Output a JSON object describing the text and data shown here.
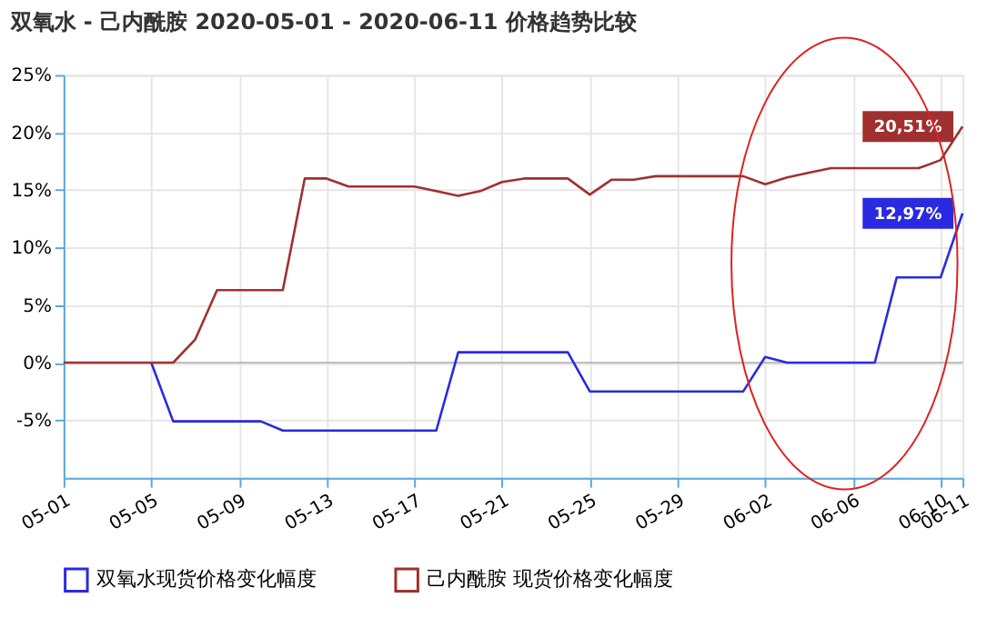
{
  "chart_data": {
    "type": "line",
    "title": "双氧水 - 己内酰胺 2020-05-01 - 2020-06-11 价格趋势比较",
    "x": [
      "2020-05-01",
      "2020-05-02",
      "2020-05-03",
      "2020-05-04",
      "2020-05-05",
      "2020-05-06",
      "2020-05-07",
      "2020-05-08",
      "2020-05-09",
      "2020-05-10",
      "2020-05-11",
      "2020-05-12",
      "2020-05-13",
      "2020-05-14",
      "2020-05-15",
      "2020-05-16",
      "2020-05-17",
      "2020-05-18",
      "2020-05-19",
      "2020-05-20",
      "2020-05-21",
      "2020-05-22",
      "2020-05-23",
      "2020-05-24",
      "2020-05-25",
      "2020-05-26",
      "2020-05-27",
      "2020-05-28",
      "2020-05-29",
      "2020-05-30",
      "2020-05-31",
      "2020-06-01",
      "2020-06-02",
      "2020-06-03",
      "2020-06-04",
      "2020-06-05",
      "2020-06-06",
      "2020-06-07",
      "2020-06-08",
      "2020-06-09",
      "2020-06-10",
      "2020-06-11"
    ],
    "series": [
      {
        "name": "双氧水现货价格变化幅度",
        "color": "#2a2ae0",
        "values": [
          null,
          null,
          null,
          null,
          0,
          -5.1,
          -5.1,
          -5.1,
          -5.1,
          -5.1,
          -5.9,
          -5.9,
          -5.9,
          -5.9,
          -5.9,
          -5.9,
          -5.9,
          -5.9,
          0.9,
          0.9,
          0.9,
          0.9,
          0.9,
          0.9,
          -2.5,
          -2.5,
          -2.5,
          -2.5,
          -2.5,
          -2.5,
          -2.5,
          -2.5,
          0.5,
          0,
          0,
          0,
          0,
          0,
          7.4,
          7.4,
          7.4,
          12.97
        ]
      },
      {
        "name": "己内酰胺 现货价格变化幅度",
        "color": "#a03030",
        "values": [
          0,
          0,
          0,
          0,
          0,
          0,
          2,
          6.3,
          6.3,
          6.3,
          6.3,
          16,
          16,
          15.3,
          15.3,
          15.3,
          15.3,
          14.9,
          14.5,
          14.9,
          15.7,
          16,
          16,
          16,
          14.6,
          15.9,
          15.9,
          16.2,
          16.2,
          16.2,
          16.2,
          16.2,
          15.5,
          16.1,
          16.5,
          16.9,
          16.9,
          16.9,
          16.9,
          16.9,
          17.6,
          20.51
        ]
      }
    ],
    "annotations": [
      {
        "text": "12,97%",
        "x": "2020-06-11",
        "y": 12.97
      },
      {
        "text": "20,51%",
        "x": "2020-06-11",
        "y": 20.51
      }
    ],
    "xlim": [
      "2020-05-01",
      "2020-06-11"
    ],
    "xticks": [
      {
        "value": "2020-05-01",
        "label": "05-01"
      },
      {
        "value": "2020-05-05",
        "label": "05-05"
      },
      {
        "value": "2020-05-09",
        "label": "05-09"
      },
      {
        "value": "2020-05-13",
        "label": "05-13"
      },
      {
        "value": "2020-05-17",
        "label": "05-17"
      },
      {
        "value": "2020-05-21",
        "label": "05-21"
      },
      {
        "value": "2020-05-25",
        "label": "05-25"
      },
      {
        "value": "2020-05-29",
        "label": "05-29"
      },
      {
        "value": "2020-06-02",
        "label": "06-02"
      },
      {
        "value": "2020-06-06",
        "label": "06-06"
      },
      {
        "value": "2020-06-10",
        "label": "06-10"
      },
      {
        "value": "2020-06-11",
        "label": "06-11"
      }
    ],
    "ylim": [
      -10,
      25
    ],
    "yticks": [
      {
        "value": -5,
        "label": "-5%"
      },
      {
        "value": 0,
        "label": "0%"
      },
      {
        "value": 5,
        "label": "5%"
      },
      {
        "value": 10,
        "label": "10%"
      },
      {
        "value": 15,
        "label": "15%"
      },
      {
        "value": 20,
        "label": "20%"
      },
      {
        "value": 25,
        "label": "25%"
      }
    ],
    "grid": true,
    "legend": "bottom",
    "marker": "none",
    "line_style": "solid"
  }
}
